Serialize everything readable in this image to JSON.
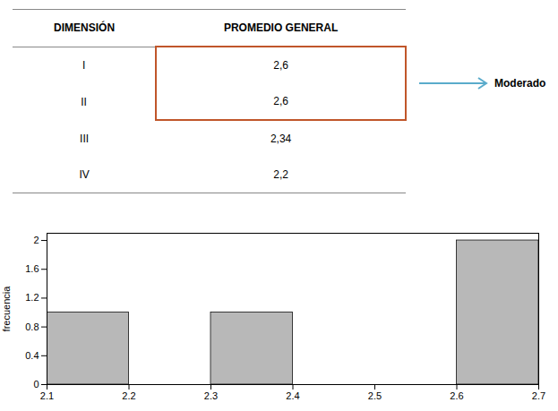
{
  "chart_data": {
    "type": "histogram",
    "bins": [
      2.1,
      2.2,
      2.3,
      2.4,
      2.5,
      2.6,
      2.7
    ],
    "values": [
      1,
      0,
      1,
      0,
      0,
      2
    ],
    "color": "#b8b8b8",
    "ylabel": "frecuencia",
    "xlim": [
      2.1,
      2.7
    ],
    "xticks": [
      2.1,
      2.2,
      2.3,
      2.4,
      2.5,
      2.6,
      2.7
    ],
    "ylim": [
      0,
      2.1
    ],
    "yticks": [
      0,
      0.4,
      0.8,
      1.2,
      1.6,
      2
    ],
    "table": {
      "columns": [
        "DIMENSIÓN",
        "PROMEDIO GENERAL"
      ],
      "rows": [
        [
          "I",
          "2,6"
        ],
        [
          "II",
          "2,6"
        ],
        [
          "III",
          "2,34"
        ],
        [
          "IV",
          "2,2"
        ]
      ],
      "highlight_rows": [
        "I",
        "II"
      ],
      "highlight_color": "#c0562a"
    },
    "annotations": [
      {
        "text": "Moderado",
        "color": "#5aabcb"
      }
    ]
  }
}
